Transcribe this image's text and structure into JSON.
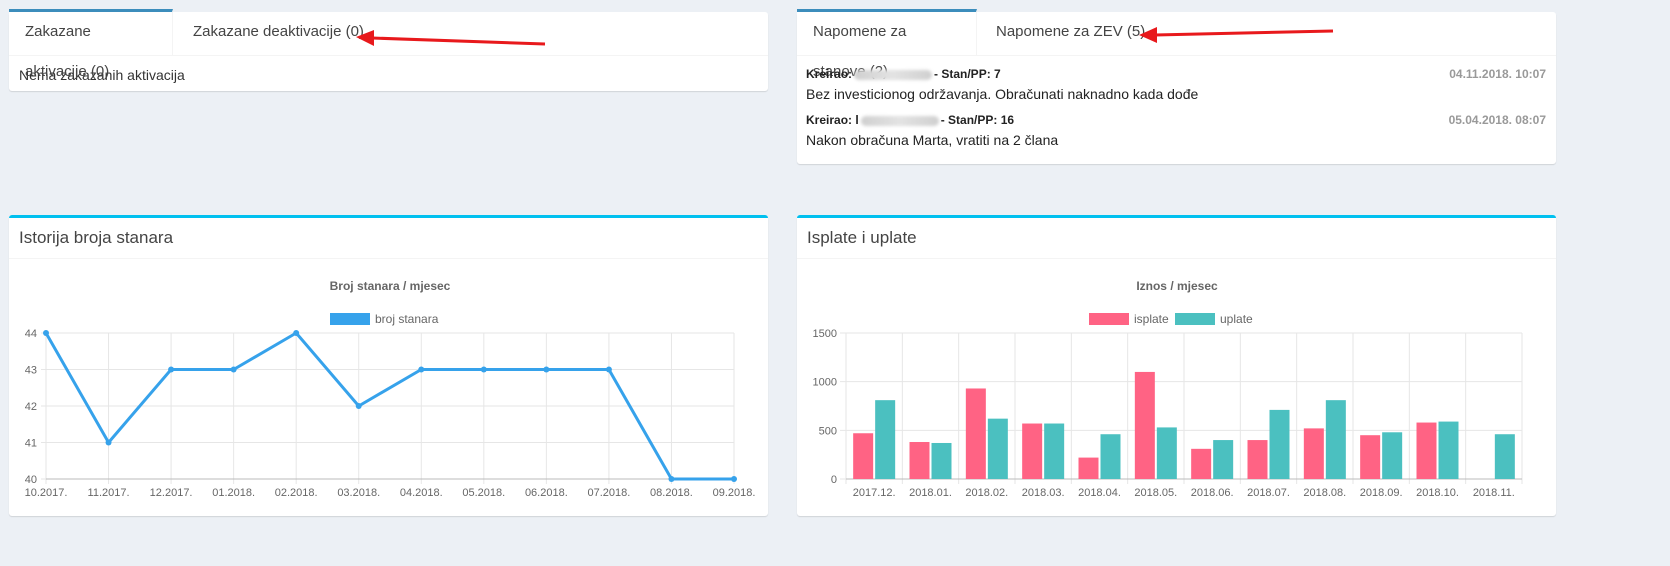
{
  "activations": {
    "tabs": [
      {
        "label": "Zakazane aktivacije (0)",
        "active": true
      },
      {
        "label": "Zakazane deaktivacije (0)",
        "active": false
      }
    ],
    "empty_text": "Nema zakazanih aktivacija"
  },
  "notes": {
    "tabs": [
      {
        "label": "Napomene za stanove (2)",
        "active": true
      },
      {
        "label": "Napomene za ZEV (5)",
        "active": false
      }
    ],
    "items": [
      {
        "creator_label": "Kreirao:",
        "unit": "- Stan/PP: 7",
        "date": "04.11.2018. 10:07",
        "text": "Bez investicionog održavanja. Obračunati naknadno kada dođe"
      },
      {
        "creator_label": "Kreirao: l",
        "unit": "- Stan/PP: 16",
        "date": "05.04.2018. 08:07",
        "text": "Nakon obračuna Marta, vratiti na 2 člana"
      }
    ]
  },
  "history_panel": {
    "title": "Istorija broja stanara"
  },
  "payments_panel": {
    "title": "Isplate i uplate"
  },
  "colors": {
    "line": "#36a2eb",
    "isplate": "#ff6384",
    "uplate": "#4bc0c0",
    "arrow": "#e8191c"
  },
  "chart_data": [
    {
      "type": "line",
      "title": "Broj stanara / mjesec",
      "categories": [
        "10.2017.",
        "11.2017.",
        "12.2017.",
        "01.2018.",
        "02.2018.",
        "03.2018.",
        "04.2018.",
        "05.2018.",
        "06.2018.",
        "07.2018.",
        "08.2018.",
        "09.2018."
      ],
      "series": [
        {
          "name": "broj stanara",
          "values": [
            44,
            41,
            43,
            43,
            44,
            42,
            43,
            43,
            43,
            43,
            40,
            40
          ]
        }
      ],
      "ylim": [
        40,
        44
      ],
      "yticks": [
        "40",
        "41",
        "42",
        "43",
        "44"
      ],
      "grid": true,
      "legend": "top-center"
    },
    {
      "type": "bar",
      "title": "Iznos / mjesec",
      "categories": [
        "2017.12.",
        "2018.01.",
        "2018.02.",
        "2018.03.",
        "2018.04.",
        "2018.05.",
        "2018.06.",
        "2018.07.",
        "2018.08.",
        "2018.09.",
        "2018.10.",
        "2018.11."
      ],
      "series": [
        {
          "name": "isplate",
          "values": [
            470,
            380,
            930,
            570,
            220,
            1100,
            310,
            400,
            520,
            450,
            580,
            0
          ]
        },
        {
          "name": "uplate",
          "values": [
            810,
            370,
            620,
            570,
            460,
            530,
            400,
            710,
            810,
            480,
            590,
            460
          ]
        }
      ],
      "ylim": [
        0,
        1500
      ],
      "yticks": [
        "0",
        "500",
        "1000",
        "1500"
      ],
      "grid": true,
      "legend": "top-center"
    }
  ]
}
